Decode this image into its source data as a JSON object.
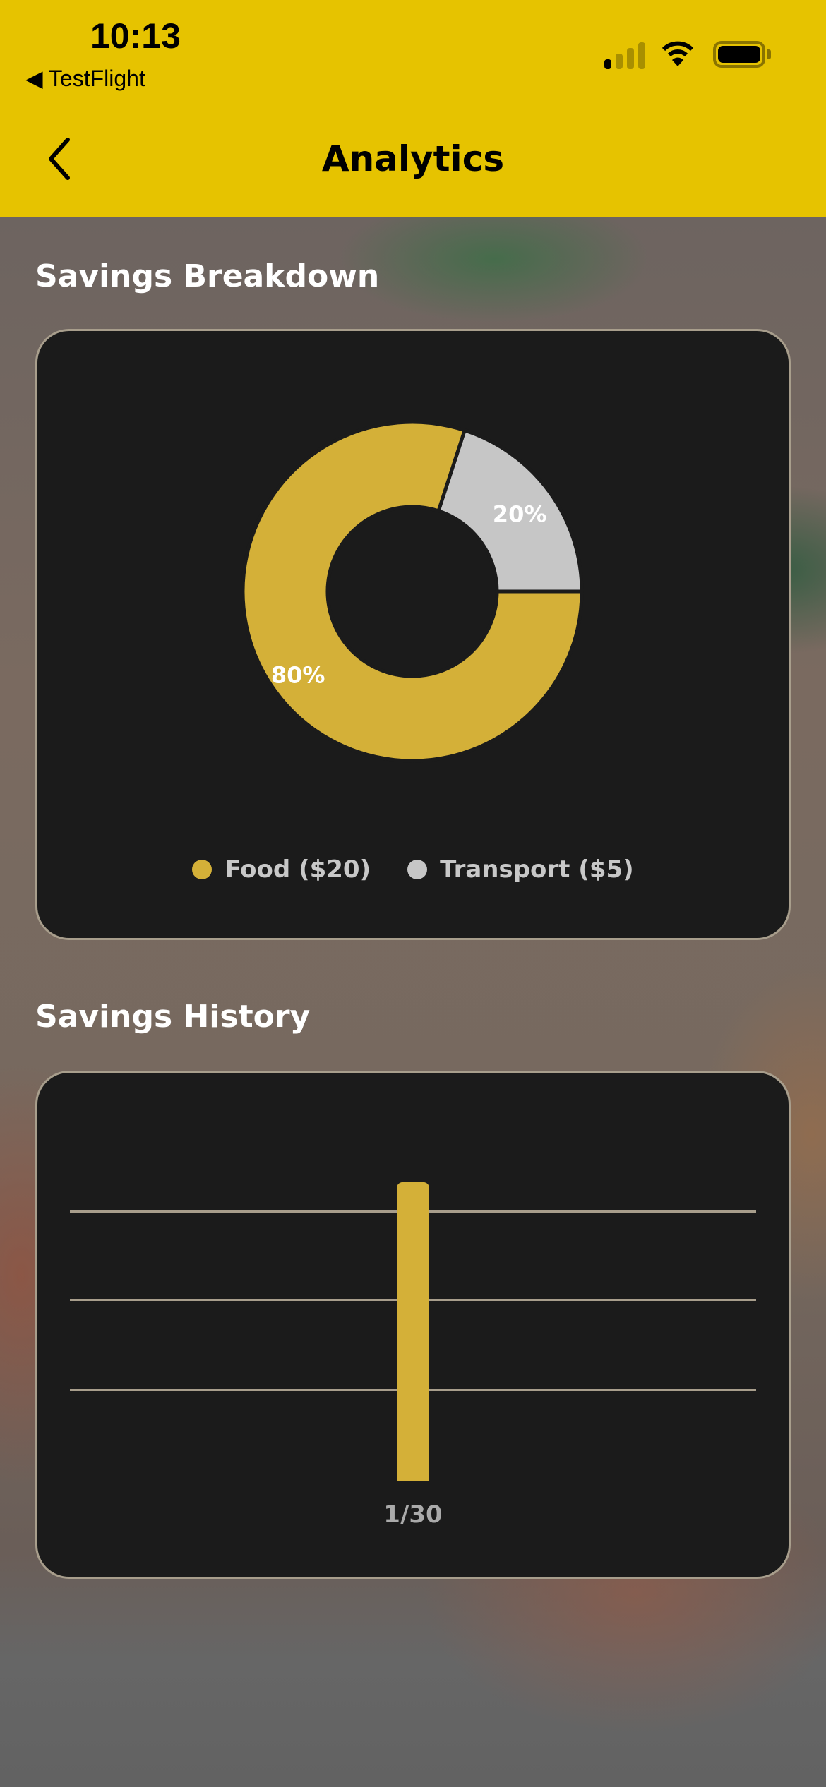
{
  "status_bar": {
    "time": "10:13",
    "back_app": "TestFlight",
    "icons": [
      "cellular-signal-icon",
      "wifi-icon",
      "battery-icon"
    ]
  },
  "header": {
    "title": "Analytics",
    "back_icon": "chevron-left-icon",
    "background": "#e6c300"
  },
  "breakdown": {
    "title": "Savings Breakdown"
  },
  "history": {
    "title": "Savings History"
  },
  "chart_data": [
    {
      "type": "pie",
      "donut": true,
      "slices": [
        {
          "label": "Food ($20)",
          "value": 20,
          "percent_label": "80%",
          "color": "#d4b038"
        },
        {
          "label": "Transport ($5)",
          "value": 5,
          "percent_label": "20%",
          "color": "#c6c6c6"
        }
      ],
      "legend_position": "bottom"
    },
    {
      "type": "bar",
      "categories": [
        "1/30"
      ],
      "values": [
        25
      ],
      "color": "#d4b038",
      "grid": true
    }
  ]
}
